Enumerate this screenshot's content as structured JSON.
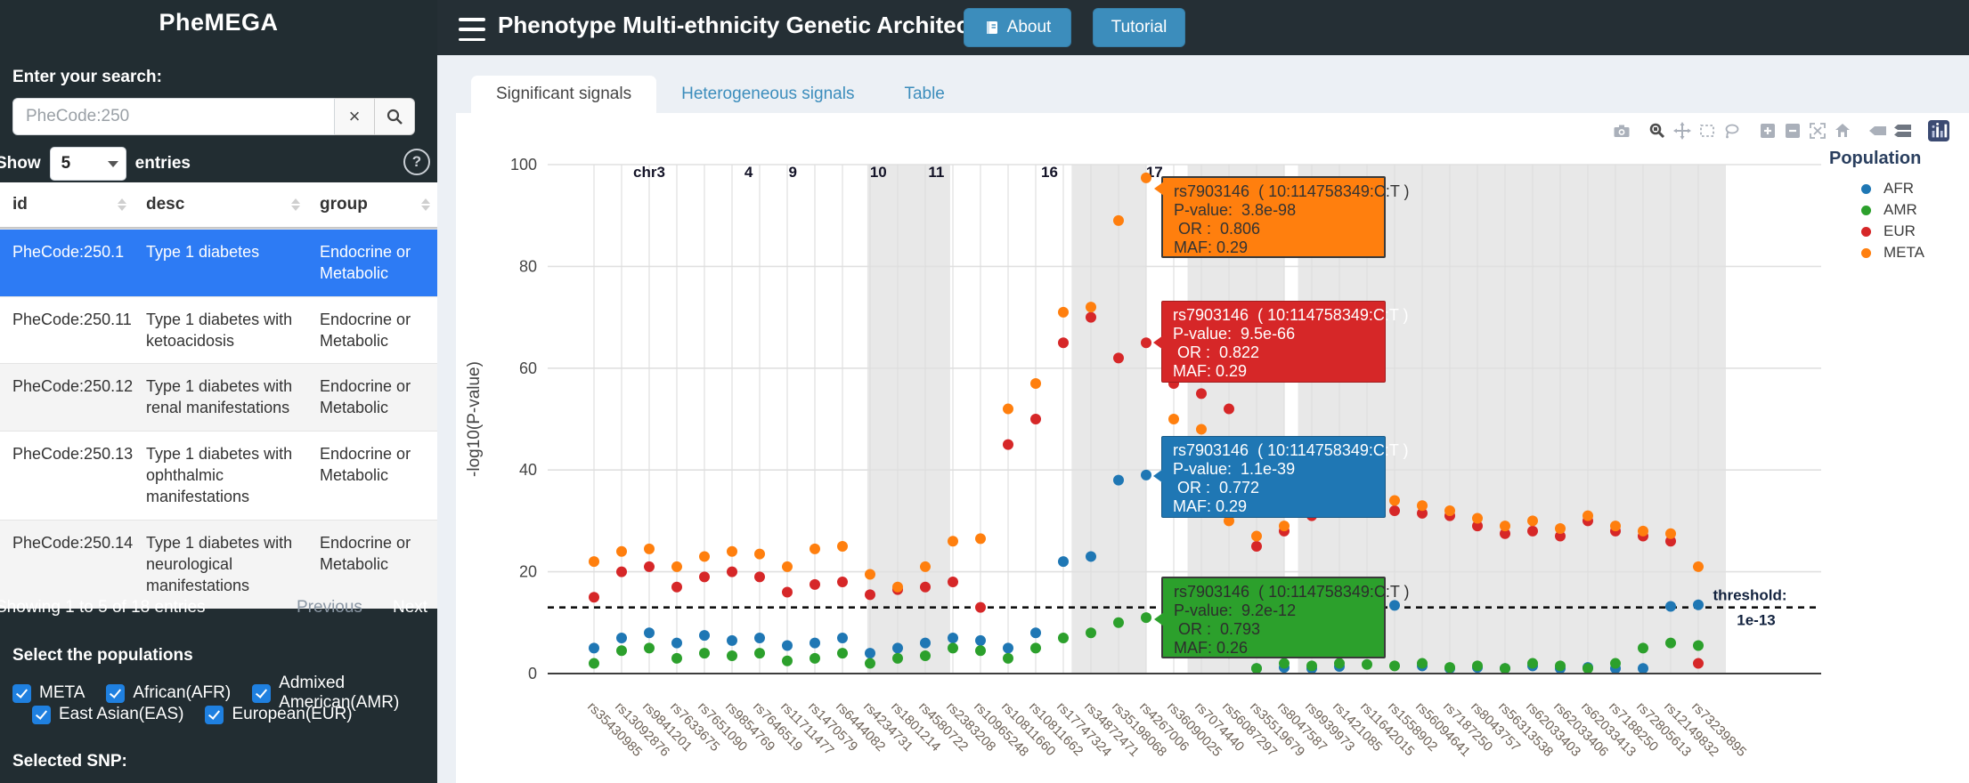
{
  "sidebar": {
    "brand": "PheMEGA",
    "search_label": "Enter your search:",
    "search_placeholder": "PheCode:250",
    "clear_button": "×",
    "show_label": "Show",
    "entries_per_page": "5",
    "entries_label": "entries",
    "help_icon": "?",
    "table": {
      "columns": [
        "id",
        "desc",
        "group"
      ],
      "rows": [
        {
          "id": "PheCode:250.1",
          "desc": "Type 1 diabetes",
          "group": "Endocrine or Metabolic",
          "selected": true
        },
        {
          "id": "PheCode:250.11",
          "desc": "Type 1 diabetes with ketoacidosis",
          "group": "Endocrine or Metabolic",
          "selected": false
        },
        {
          "id": "PheCode:250.12",
          "desc": "Type 1 diabetes with renal manifestations",
          "group": "Endocrine or Metabolic",
          "selected": false
        },
        {
          "id": "PheCode:250.13",
          "desc": "Type 1 diabetes with ophthalmic manifestations",
          "group": "Endocrine or Metabolic",
          "selected": false
        },
        {
          "id": "PheCode:250.14",
          "desc": "Type 1 diabetes with neurological manifestations",
          "group": "Endocrine or Metabolic",
          "selected": false
        }
      ]
    },
    "pagination": {
      "info": "Showing 1 to 5 of 18 entries",
      "previous": "Previous",
      "next": "Next"
    },
    "populations_label": "Select the populations",
    "populations": [
      {
        "label": "META",
        "checked": true
      },
      {
        "label": "African(AFR)",
        "checked": true
      },
      {
        "label": "Admixed American(AMR)",
        "checked": true
      },
      {
        "label": "East Asian(EAS)",
        "checked": true
      },
      {
        "label": "European(EUR)",
        "checked": true
      }
    ],
    "selected_snp_label": "Selected SNP:"
  },
  "header": {
    "title": "Phenotype Multi-ethnicity Genetic Architecture",
    "about_label": "About",
    "tutorial_label": "Tutorial"
  },
  "tabs": [
    {
      "label": "Significant signals",
      "active": true
    },
    {
      "label": "Heterogeneous signals",
      "active": false
    },
    {
      "label": "Table",
      "active": false
    }
  ],
  "legend": {
    "title": "Population",
    "items": [
      {
        "label": "AFR",
        "color": "#1f77b4"
      },
      {
        "label": "AMR",
        "color": "#2ca02c"
      },
      {
        "label": "EUR",
        "color": "#d62728"
      },
      {
        "label": "META",
        "color": "#ff7f0e"
      }
    ]
  },
  "modebar": {
    "buttons": [
      "download-plot-camera",
      "zoom",
      "pan",
      "box-select",
      "lasso-select",
      "zoom-in",
      "zoom-out",
      "autoscale",
      "reset-axes-home",
      "show-closest-on-hover",
      "compare-data-on-hover",
      "plotly-logo"
    ]
  },
  "tooltips": [
    {
      "series": "META",
      "color": "#ff7f0e",
      "text_color": "#333333",
      "title": "rs7903146  ( 10:114758349:C:T )",
      "line1": "P-value:  3.8e-98",
      "line2": " OR :  0.806",
      "line3": "MAF: 0.29"
    },
    {
      "series": "EUR",
      "color": "#d62728",
      "text_color": "#ffffff",
      "title": "rs7903146  ( 10:114758349:C:T )",
      "line1": "P-value:  9.5e-66",
      "line2": " OR :  0.822",
      "line3": "MAF: 0.29"
    },
    {
      "series": "AFR",
      "color": "#1f77b4",
      "text_color": "#ffffff",
      "title": "rs7903146  ( 10:114758349:C:T )",
      "line1": "P-value:  1.1e-39",
      "line2": " OR :  0.772",
      "line3": "MAF: 0.29"
    },
    {
      "series": "AMR",
      "color": "#2ca02c",
      "text_color": "#2d2d2d",
      "title": "rs7903146  ( 10:114758349:C:T )",
      "line1": "P-value:  9.2e-12",
      "line2": " OR :  0.793",
      "line3": "MAF: 0.26"
    }
  ],
  "chart_data": {
    "type": "scatter",
    "title": "",
    "xlabel": "",
    "ylabel": "-log10(P-value)",
    "ylim": [
      0,
      100
    ],
    "yticks": [
      0,
      20,
      40,
      60,
      80,
      100
    ],
    "grid": true,
    "legend_position": "right",
    "categories": [
      "rs35430985",
      "rs13092876",
      "rs9841201",
      "rs7633675",
      "rs7651090",
      "rs9854769",
      "rs7646519",
      "rs11711477",
      "rs1470579",
      "rs6444082",
      "rs4234731",
      "rs1801214",
      "rs4580722",
      "rs2383208",
      "rs10965248",
      "rs10811660",
      "rs10811662",
      "rs17747324",
      "rs34872471",
      "rs35198068",
      "rs4267006",
      "rs36090025",
      "rs7074440",
      "rs56087297",
      "rs35519679",
      "rs8047587",
      "rs9939973",
      "rs1421085",
      "rs11642015",
      "rs1558902",
      "rs56094641",
      "rs7187250",
      "rs8043757",
      "rs56313538",
      "rs62033403",
      "rs62033406",
      "rs62033413",
      "rs7188250",
      "rs72805613",
      "rs12149832",
      "rs73239895"
    ],
    "series": [
      {
        "name": "AFR",
        "color": "#1f77b4",
        "values": [
          5,
          7,
          8,
          6,
          7.5,
          6.5,
          7,
          5.5,
          6,
          7,
          4,
          5,
          6,
          7,
          6.5,
          5,
          8,
          22,
          23,
          38,
          39,
          13,
          12.5,
          8,
          1,
          1.2,
          1,
          1.4,
          13.1,
          13.4,
          1.5,
          1,
          1.2,
          1,
          1.5,
          1,
          1.2,
          1,
          1,
          13.2,
          13.5
        ]
      },
      {
        "name": "AMR",
        "color": "#2ca02c",
        "values": [
          2,
          4.5,
          5,
          3,
          4,
          3.5,
          4,
          2.5,
          3,
          4,
          2,
          3,
          3.5,
          5,
          4.5,
          3,
          5,
          7,
          8,
          10,
          11,
          6,
          5.5,
          4,
          1,
          2,
          1.5,
          2,
          1.8,
          1.5,
          2,
          1.2,
          1.5,
          1,
          2,
          1.5,
          1,
          2,
          5,
          6,
          5.5
        ]
      },
      {
        "name": "EUR",
        "color": "#d62728",
        "values": [
          15,
          20,
          21,
          17,
          19,
          20,
          19,
          16,
          17.5,
          18,
          15.5,
          16.5,
          17,
          18,
          13,
          45,
          50,
          65,
          70,
          62,
          65,
          57,
          55,
          52,
          25,
          28,
          31,
          33,
          32.5,
          32,
          31.5,
          31,
          29,
          27.5,
          28,
          27,
          30,
          28,
          27,
          26,
          2
        ]
      },
      {
        "name": "META",
        "color": "#ff7f0e",
        "values": [
          22,
          24,
          24.5,
          21,
          23,
          24,
          23.5,
          21,
          24.5,
          25,
          19.5,
          17,
          21,
          26,
          26.5,
          52,
          57,
          71,
          72,
          89,
          97.4,
          50,
          48,
          30,
          27,
          29,
          33,
          35,
          34.5,
          34,
          33,
          32,
          30.5,
          29,
          30,
          28.5,
          31,
          29,
          28,
          27.5,
          21
        ]
      }
    ],
    "chromosome_labels": [
      {
        "label": "chr3",
        "col": 3.0
      },
      {
        "label": "4",
        "col": 6.6
      },
      {
        "label": "9",
        "col": 8.2
      },
      {
        "label": "10",
        "col": 11.3
      },
      {
        "label": "11",
        "col": 13.4
      },
      {
        "label": "16",
        "col": 17.5
      },
      {
        "label": "17",
        "col": 21.3
      }
    ],
    "shaded_bands_cols": [
      [
        10.9,
        13.9
      ],
      [
        18.3,
        21.0
      ],
      [
        22.5,
        26.0
      ],
      [
        26.5,
        42.0
      ]
    ],
    "threshold": {
      "value": 13,
      "label_line1": "threshold:",
      "label_line2": "1e-13"
    }
  }
}
